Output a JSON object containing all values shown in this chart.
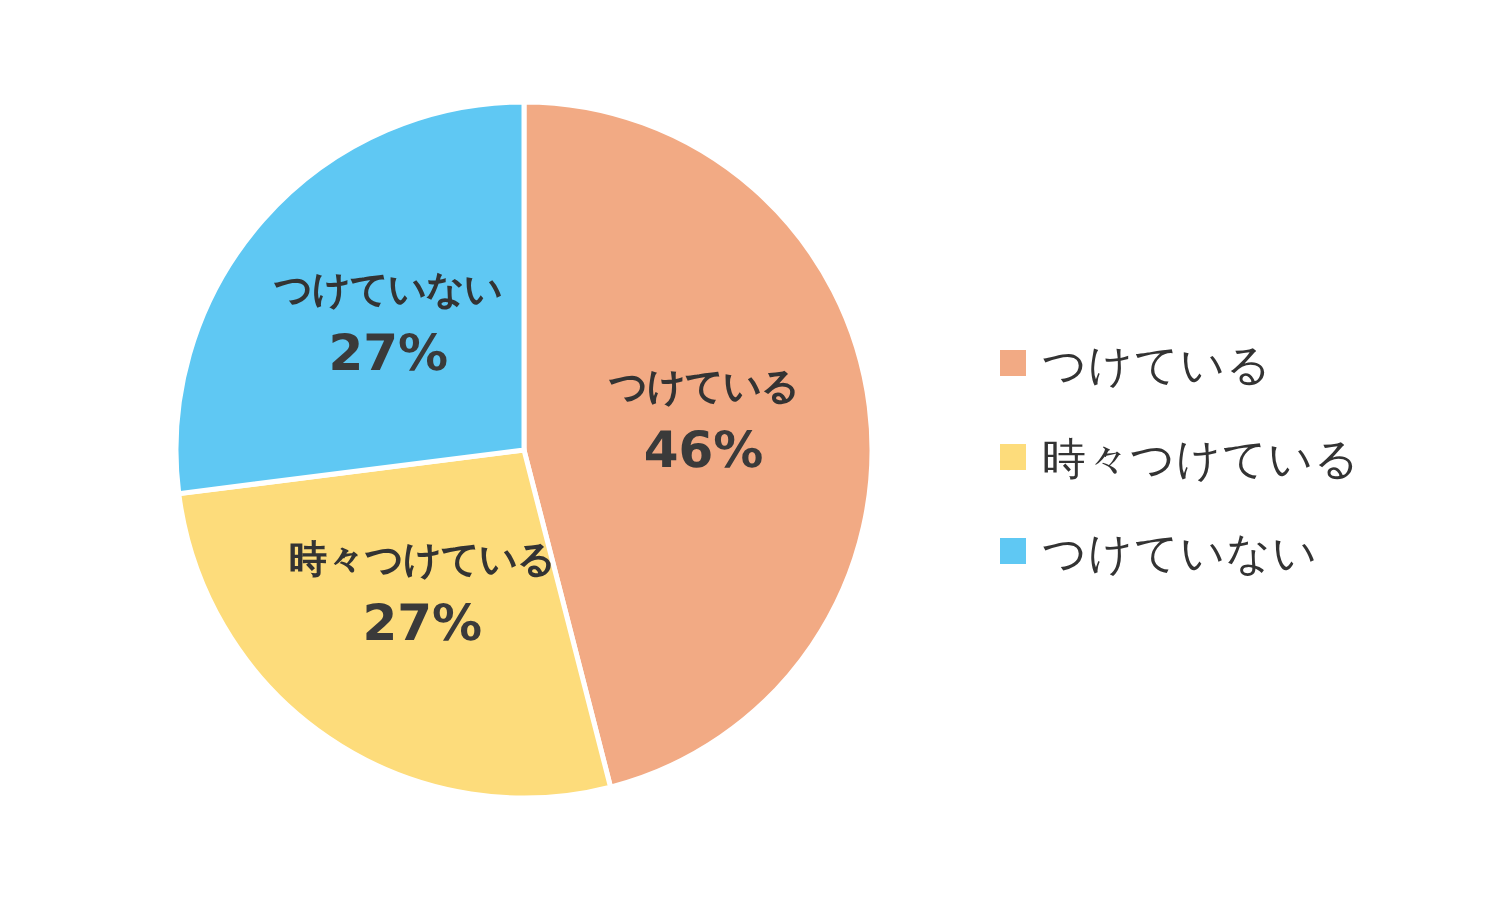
{
  "chart_data": {
    "type": "pie",
    "categories": [
      "つけている",
      "時々つけている",
      "つけていない"
    ],
    "values": [
      46,
      27,
      27
    ],
    "value_labels": [
      "46%",
      "27%",
      "27%"
    ],
    "colors": [
      "#f2aa84",
      "#fddc7b",
      "#5fc8f3"
    ],
    "legend": "right"
  }
}
